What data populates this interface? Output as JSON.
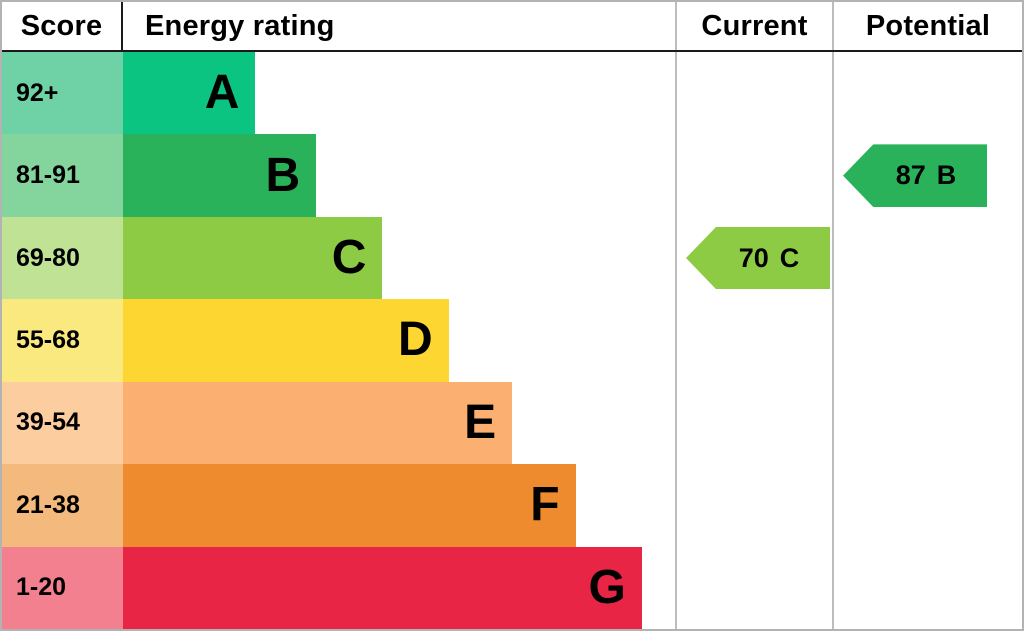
{
  "header": {
    "score": "Score",
    "energy_rating": "Energy rating",
    "current": "Current",
    "potential": "Potential"
  },
  "bands": [
    {
      "score": "92+",
      "letter": "A",
      "bar_color": "#0bc482",
      "tint_color": "#6fd2a6",
      "bar_width_pct": 24
    },
    {
      "score": "81-91",
      "letter": "B",
      "bar_color": "#2ab25a",
      "tint_color": "#84d49d",
      "bar_width_pct": 35
    },
    {
      "score": "69-80",
      "letter": "C",
      "bar_color": "#8ecb44",
      "tint_color": "#c0e295",
      "bar_width_pct": 47
    },
    {
      "score": "55-68",
      "letter": "D",
      "bar_color": "#fed631",
      "tint_color": "#fae97e",
      "bar_width_pct": 59
    },
    {
      "score": "39-54",
      "letter": "E",
      "bar_color": "#fbaf71",
      "tint_color": "#fcce9f",
      "bar_width_pct": 70.5
    },
    {
      "score": "21-38",
      "letter": "F",
      "bar_color": "#ee8b2f",
      "tint_color": "#f4ba7d",
      "bar_width_pct": 82
    },
    {
      "score": "1-20",
      "letter": "G",
      "bar_color": "#e92546",
      "tint_color": "#f2808f",
      "bar_width_pct": 94
    }
  ],
  "current": {
    "value": "70",
    "letter": "C",
    "color": "#8ecb44",
    "band_index": 2
  },
  "potential": {
    "value": "87",
    "letter": "B",
    "color": "#2ab25a",
    "band_index": 1
  },
  "chart_data": {
    "type": "bar",
    "title": "Energy rating",
    "categories": [
      "A",
      "B",
      "C",
      "D",
      "E",
      "F",
      "G"
    ],
    "score_ranges": [
      "92+",
      "81-91",
      "69-80",
      "55-68",
      "39-54",
      "21-38",
      "1-20"
    ],
    "bar_width_pct": [
      24,
      35,
      47,
      59,
      70.5,
      82,
      94
    ],
    "current": {
      "value": 70,
      "rating": "C"
    },
    "potential": {
      "value": 87,
      "rating": "B"
    },
    "legend_position": "none",
    "grid": false
  }
}
